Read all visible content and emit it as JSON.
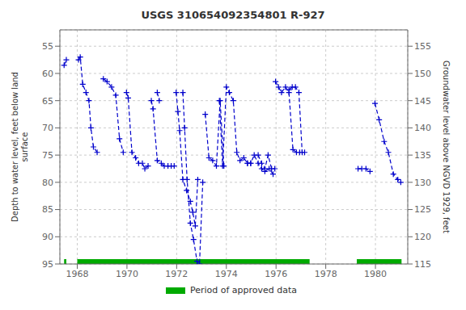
{
  "chart_data": {
    "type": "line",
    "title": "USGS 310654092354801 R-927",
    "ylabel": "Depth to water level, feet below land\nsurface",
    "y2label": "Groundwater level above NGVD 1929, feet",
    "xlim": [
      1967.3,
      1981.3
    ],
    "xticks": [
      1968,
      1970,
      1972,
      1974,
      1976,
      1978,
      1980
    ],
    "ylim": [
      95,
      52
    ],
    "yticks": [
      55,
      60,
      65,
      70,
      75,
      80,
      85,
      90,
      95
    ],
    "y2lim": [
      115,
      158
    ],
    "y2ticks": [
      115,
      120,
      125,
      130,
      135,
      140,
      145,
      150,
      155
    ],
    "grid": true,
    "legend": "bottom",
    "series": [
      {
        "type": "line",
        "color": "#0000cc",
        "line_style": "dashed",
        "marker": "plus",
        "x": [
          1967.47,
          1967.56
        ],
        "values": [
          58.5,
          57.5
        ]
      },
      {
        "type": "line",
        "color": "#0000cc",
        "line_style": "dashed",
        "marker": "plus",
        "x": [
          1968.05,
          1968.12,
          1968.22,
          1968.35,
          1968.47,
          1968.55,
          1968.65,
          1968.8
        ],
        "values": [
          57.5,
          57.0,
          62.0,
          63.5,
          65.0,
          70.0,
          73.5,
          74.5
        ]
      },
      {
        "type": "line",
        "color": "#0000cc",
        "line_style": "dashed",
        "marker": "plus",
        "x": [
          1969.05,
          1969.2,
          1969.38,
          1969.55,
          1969.7,
          1969.85
        ],
        "values": [
          61.0,
          61.5,
          62.5,
          64.0,
          72.0,
          74.5
        ]
      },
      {
        "type": "line",
        "color": "#0000cc",
        "line_style": "dashed",
        "marker": "plus",
        "x": [
          1969.98,
          1970.05,
          1970.2,
          1970.35,
          1970.47,
          1970.62,
          1970.72,
          1970.85
        ],
        "values": [
          63.5,
          64.5,
          74.5,
          75.5,
          76.5,
          76.5,
          77.5,
          77.0
        ]
      },
      {
        "type": "line",
        "color": "#0000cc",
        "line_style": "dashed",
        "marker": "plus",
        "x": [
          1970.98,
          1971.05,
          1971.22,
          1971.38,
          1971.5,
          1971.65,
          1971.78,
          1971.9
        ],
        "values": [
          65.0,
          66.5,
          76.0,
          76.5,
          77.0,
          77.0,
          77.0,
          77.0
        ]
      },
      {
        "type": "line",
        "color": "#0000cc",
        "line_style": "dashed",
        "marker": "plus",
        "x": [
          1971.22,
          1971.3
        ],
        "values": [
          63.5,
          65.0
        ]
      },
      {
        "type": "line",
        "color": "#0000cc",
        "line_style": "dashed",
        "marker": "plus",
        "x": [
          1971.98,
          1972.05,
          1972.12,
          1972.25,
          1972.4,
          1972.55,
          1972.65,
          1972.75,
          1972.85
        ],
        "values": [
          63.5,
          67.0,
          70.5,
          79.5,
          81.5,
          83.5,
          85.5,
          88.0,
          79.5
        ]
      },
      {
        "type": "line",
        "color": "#0000cc",
        "line_style": "dashed",
        "marker": "plus",
        "x": [
          1972.25,
          1972.32,
          1972.42,
          1972.55,
          1972.68,
          1972.82,
          1972.92,
          1973.05
        ],
        "values": [
          63.5,
          70.0,
          79.5,
          87.5,
          90.5,
          94.5,
          95.0,
          80.0
        ]
      },
      {
        "type": "line",
        "color": "#0000cc",
        "line_style": "dashed",
        "marker": "plus",
        "x": [
          1973.15,
          1973.3,
          1973.45,
          1973.6,
          1973.75,
          1973.9
        ],
        "values": [
          67.5,
          75.5,
          76.0,
          77.0,
          65.0,
          77.0
        ]
      },
      {
        "type": "line",
        "color": "#0000cc",
        "line_style": "dashed",
        "marker": "plus",
        "x": [
          1973.72,
          1973.85,
          1974.0,
          1974.12,
          1974.28,
          1974.42,
          1974.55,
          1974.7,
          1974.85,
          1974.98
        ],
        "values": [
          65.0,
          77.0,
          62.5,
          63.5,
          65.0,
          74.5,
          76.0,
          75.5,
          76.5,
          76.5
        ]
      },
      {
        "type": "line",
        "color": "#0000cc",
        "line_style": "dashed",
        "marker": "plus",
        "x": [
          1974.85,
          1974.98,
          1975.12,
          1975.28,
          1975.42,
          1975.55,
          1975.72,
          1975.88
        ],
        "values": [
          76.5,
          76.5,
          75.0,
          76.5,
          77.5,
          78.0,
          77.5,
          78.5
        ]
      },
      {
        "type": "line",
        "color": "#0000cc",
        "line_style": "dashed",
        "marker": "plus",
        "x": [
          1975.28,
          1975.42,
          1975.55,
          1975.68,
          1975.82,
          1975.95
        ],
        "values": [
          75.0,
          76.5,
          77.5,
          75.0,
          77.5,
          77.5
        ]
      },
      {
        "type": "line",
        "color": "#0000cc",
        "line_style": "dashed",
        "marker": "plus",
        "x": [
          1975.98,
          1976.1,
          1976.22,
          1976.38,
          1976.52,
          1976.68,
          1976.82,
          1976.95
        ],
        "values": [
          61.5,
          62.5,
          63.5,
          62.5,
          63.5,
          74.0,
          74.5,
          74.5
        ]
      },
      {
        "type": "line",
        "color": "#0000cc",
        "line_style": "dashed",
        "marker": "plus",
        "x": [
          1976.52,
          1976.65,
          1976.78,
          1976.92,
          1977.05,
          1977.15
        ],
        "values": [
          63.0,
          62.5,
          62.5,
          63.5,
          74.5,
          74.5
        ]
      },
      {
        "type": "line",
        "color": "#0000cc",
        "line_style": "dashed",
        "marker": "plus",
        "x": [
          1979.3,
          1979.45,
          1979.62,
          1979.78
        ],
        "values": [
          77.5,
          77.5,
          77.5,
          78.0
        ]
      },
      {
        "type": "line",
        "color": "#0000cc",
        "line_style": "dashed",
        "marker": "plus",
        "x": [
          1979.98,
          1980.15,
          1980.35,
          1980.52,
          1980.72,
          1980.9,
          1981.02
        ],
        "values": [
          65.5,
          68.5,
          72.5,
          74.5,
          78.5,
          79.5,
          80.0
        ]
      },
      {
        "type": "span",
        "name": "Period of approved data",
        "color": "#00aa00",
        "periods": [
          [
            1967.47,
            1967.56
          ],
          [
            1968.0,
            1977.35
          ],
          [
            1979.25,
            1981.05
          ]
        ]
      }
    ]
  }
}
